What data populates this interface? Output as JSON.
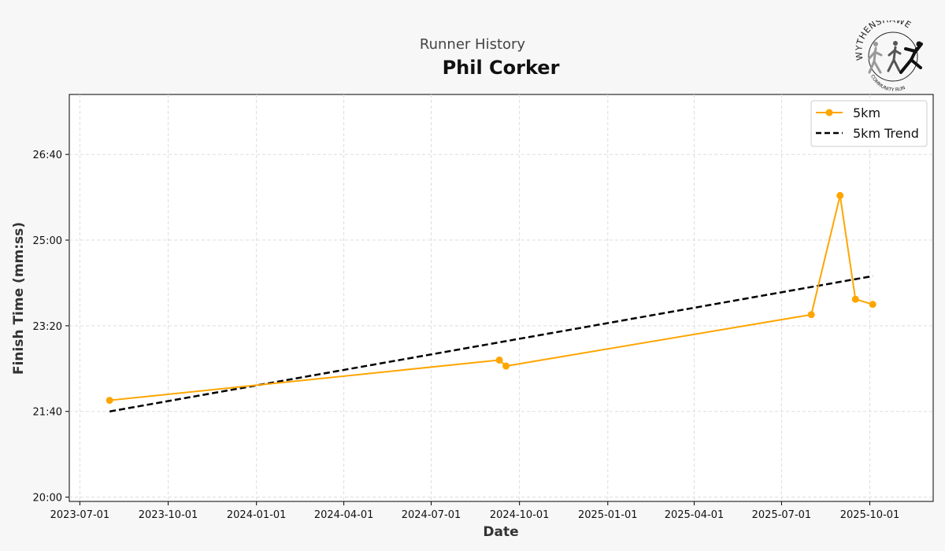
{
  "header": {
    "supertitle": "Runner History",
    "title": "Phil Corker"
  },
  "logo": {
    "top_text": "WYTHENSHAWE",
    "bottom_text": "COMMUNITY RUN",
    "icon": "running-figures-logo"
  },
  "colors": {
    "series": "#FFA500",
    "trend": "#000000",
    "background": "#f7f7f7",
    "plot_background": "#ffffff"
  },
  "chart_data": {
    "type": "line",
    "xlabel": "Date",
    "ylabel": "Finish Time (mm:ss)",
    "x_ticks": [
      "2023-07-01",
      "2023-10-01",
      "2024-01-01",
      "2024-04-01",
      "2024-07-01",
      "2024-10-01",
      "2025-01-01",
      "2025-04-01",
      "2025-07-01",
      "2025-10-01"
    ],
    "y_ticks": [
      "20:00",
      "21:40",
      "23:20",
      "25:00",
      "26:40"
    ],
    "xlim": [
      "2023-06-20",
      "2025-12-06"
    ],
    "ylim": [
      "19:55",
      "27:50"
    ],
    "grid": true,
    "legend_position": "top-right",
    "series": [
      {
        "name": "5km",
        "style": "line-marker",
        "points": [
          {
            "x": "2023-08-01",
            "y": "21:53"
          },
          {
            "x": "2024-09-10",
            "y": "22:40"
          },
          {
            "x": "2024-09-17",
            "y": "22:33"
          },
          {
            "x": "2025-08-01",
            "y": "23:33"
          },
          {
            "x": "2025-08-31",
            "y": "25:52"
          },
          {
            "x": "2025-09-16",
            "y": "23:51"
          },
          {
            "x": "2025-10-04",
            "y": "23:45"
          }
        ]
      },
      {
        "name": "5km Trend",
        "style": "dashed",
        "points": [
          {
            "x": "2023-08-01",
            "y": "21:40"
          },
          {
            "x": "2025-10-04",
            "y": "24:18"
          }
        ]
      }
    ]
  }
}
